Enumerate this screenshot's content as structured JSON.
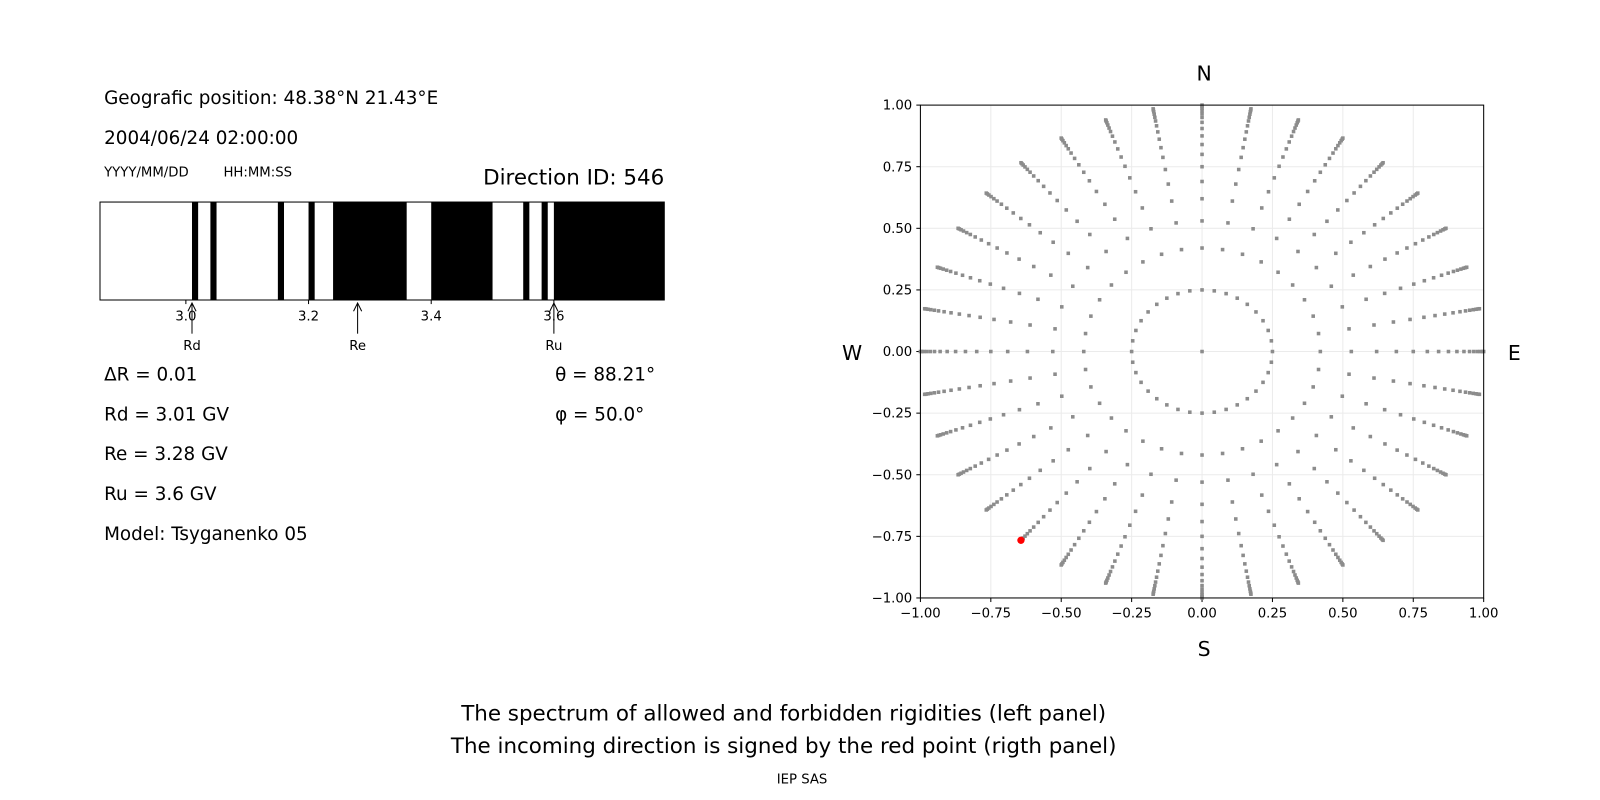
{
  "left_panel": {
    "position": "Geografic position: 48.38°N 21.43°E",
    "datetime": "2004/06/24 02:00:00",
    "date_format": "YYYY/MM/DD",
    "time_format": "HH:MM:SS",
    "direction_id": "Direction ID: 546",
    "delta_r": "ΔR = 0.01",
    "rd": "Rd = 3.01 GV",
    "re": "Re = 3.28 GV",
    "ru": "Ru = 3.6 GV",
    "model": "Model: Tsyganenko 05",
    "theta": "θ = 88.21°",
    "phi": "φ = 50.0°"
  },
  "chart_data": [
    {
      "type": "bar",
      "description_kind": "rigidity spectrum (black = forbidden, white = allowed)",
      "xlim": [
        2.86,
        3.78
      ],
      "xticks": [
        "3.0",
        "3.2",
        "3.4",
        "3.6"
      ],
      "forbidden_bands": [
        [
          3.01,
          3.02
        ],
        [
          3.04,
          3.05
        ],
        [
          3.15,
          3.16
        ],
        [
          3.2,
          3.21
        ],
        [
          3.24,
          3.36
        ],
        [
          3.4,
          3.5
        ],
        [
          3.55,
          3.56
        ],
        [
          3.58,
          3.59
        ],
        [
          3.6,
          3.78
        ]
      ],
      "markers": [
        {
          "label": "Rd",
          "value": 3.01
        },
        {
          "label": "Re",
          "value": 3.28
        },
        {
          "label": "Ru",
          "value": 3.6
        }
      ],
      "colors": {
        "forbidden": "#000000",
        "allowed": "#ffffff"
      }
    },
    {
      "type": "scatter",
      "xlim": [
        -1.0,
        1.0
      ],
      "ylim": [
        -1.0,
        1.0
      ],
      "xticks": [
        "−1.00",
        "−0.75",
        "−0.50",
        "−0.25",
        "0.00",
        "0.25",
        "0.50",
        "0.75",
        "1.00"
      ],
      "yticks": [
        "1.00",
        "0.75",
        "0.50",
        "0.25",
        "0.00",
        "−0.25",
        "−0.50",
        "−0.75",
        "−1.00"
      ],
      "grid": true,
      "compass": {
        "n": "N",
        "s": "S",
        "w": "W",
        "e": "E"
      },
      "azimuth_step_deg": 10,
      "radii": [
        0.25,
        0.42,
        0.53,
        0.62,
        0.69,
        0.75,
        0.8,
        0.84,
        0.875,
        0.905,
        0.93,
        0.95,
        0.965,
        0.978,
        0.988,
        0.995,
        1.0
      ],
      "center_point": [
        0,
        0
      ],
      "highlight": {
        "x": -0.643,
        "y": -0.766,
        "color": "#ff0000"
      },
      "point_color": "#8c8c8c"
    }
  ],
  "caption": {
    "line1": "The spectrum of allowed and forbidden rigidities (left panel)",
    "line2": "The incoming direction is signed by the red point (rigth panel)",
    "credit": "IEP SAS"
  }
}
